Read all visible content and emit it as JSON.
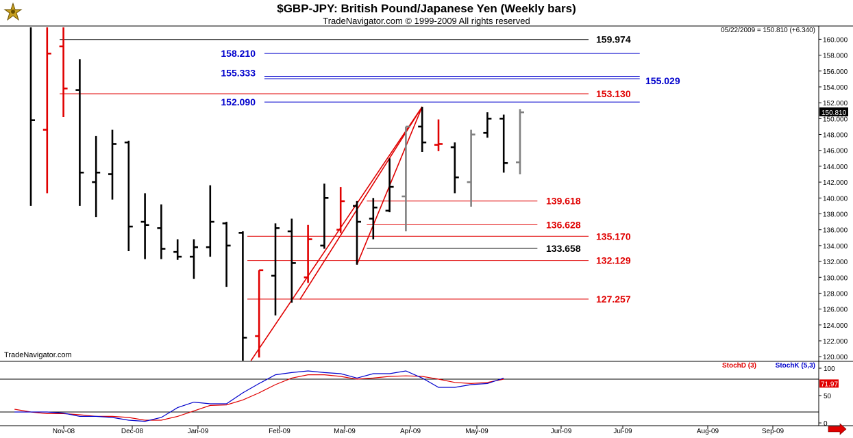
{
  "header": {
    "title": "$GBP-JPY:  British Pound/Japanese Yen  (Weekly bars)",
    "subtitle": "TradeNavigator.com © 1999-2009 All rights reserved",
    "last_info": "05/22/2009 = 150.810 (+6.340)",
    "watermark": "TradeNavigator.com"
  },
  "colors": {
    "red": "#e00000",
    "blue": "#0000cc",
    "black": "#000000",
    "gray": "#808080",
    "green": "#00c000"
  },
  "chart_data": [
    {
      "type": "ohlc",
      "title": "$GBP-JPY:  British Pound/Japanese Yen  (Weekly bars)",
      "ylim": [
        119.5,
        161.5
      ],
      "yticks": [
        120.0,
        122.0,
        124.0,
        126.0,
        128.0,
        130.0,
        132.0,
        134.0,
        136.0,
        138.0,
        140.0,
        142.0,
        144.0,
        146.0,
        148.0,
        150.0,
        152.0,
        154.0,
        156.0,
        158.0,
        160.0
      ],
      "x_months": [
        "Nov-08",
        "Dec-08",
        "Jan-09",
        "Feb-09",
        "Mar-09",
        "Apr-09",
        "May-09",
        "Jun-09",
        "Jul-09",
        "Aug-09",
        "Sep-09"
      ],
      "last_price": "150.810",
      "bars": [
        {
          "open": null,
          "high": 161.5,
          "low": 139.0,
          "close": 149.8,
          "color": "black"
        },
        {
          "open": 148.6,
          "high": 161.5,
          "low": 140.6,
          "close": 158.2,
          "color": "red"
        },
        {
          "open": 159.1,
          "high": 161.5,
          "low": 150.2,
          "close": 153.8,
          "color": "red"
        },
        {
          "open": 153.6,
          "high": 157.5,
          "low": 139.0,
          "close": 143.2,
          "color": "black"
        },
        {
          "open": 142.0,
          "high": 147.8,
          "low": 137.6,
          "close": 143.2,
          "color": "black"
        },
        {
          "open": 143.0,
          "high": 148.6,
          "low": 139.8,
          "close": 146.8,
          "color": "black"
        },
        {
          "open": 147.0,
          "high": 147.2,
          "low": 133.3,
          "close": 136.4,
          "color": "black"
        },
        {
          "open": 137.0,
          "high": 140.6,
          "low": 132.3,
          "close": 136.6,
          "color": "black"
        },
        {
          "open": 136.2,
          "high": 139.2,
          "low": 132.3,
          "close": 133.6,
          "color": "black"
        },
        {
          "open": 133.2,
          "high": 134.8,
          "low": 132.2,
          "close": 132.6,
          "color": "black"
        },
        {
          "open": 132.6,
          "high": 134.8,
          "low": 129.8,
          "close": 133.8,
          "color": "black"
        },
        {
          "open": 133.8,
          "high": 141.6,
          "low": 132.6,
          "close": 137.0,
          "color": "black"
        },
        {
          "open": 136.8,
          "high": 137.0,
          "low": 128.8,
          "close": 134.0,
          "color": "black"
        },
        {
          "open": 135.6,
          "high": 135.8,
          "low": 119.5,
          "close": 122.4,
          "color": "black"
        },
        {
          "open": 122.6,
          "high": 130.9,
          "low": 119.9,
          "close": 130.9,
          "color": "red"
        },
        {
          "open": 130.2,
          "high": 136.8,
          "low": 125.2,
          "close": 136.2,
          "color": "black"
        },
        {
          "open": 135.8,
          "high": 137.4,
          "low": 126.8,
          "close": 131.8,
          "color": "black"
        },
        {
          "open": 130.0,
          "high": 136.6,
          "low": 129.3,
          "close": 134.8,
          "color": "red"
        },
        {
          "open": 134.0,
          "high": 141.8,
          "low": 133.6,
          "close": 140.0,
          "color": "black"
        },
        {
          "open": 136.0,
          "high": 141.4,
          "low": 135.6,
          "close": 139.6,
          "color": "red"
        },
        {
          "open": 139.0,
          "high": 139.6,
          "low": 131.6,
          "close": 137.0,
          "color": "black"
        },
        {
          "open": 137.4,
          "high": 140.0,
          "low": 134.8,
          "close": 138.8,
          "color": "black"
        },
        {
          "open": 138.4,
          "high": 145.0,
          "low": 138.2,
          "close": 141.4,
          "color": "black"
        },
        {
          "open": 140.2,
          "high": 149.0,
          "low": 135.8,
          "close": 149.0,
          "color": "gray"
        },
        {
          "open": 149.0,
          "high": 151.5,
          "low": 145.8,
          "close": 147.0,
          "color": "black"
        },
        {
          "open": 146.7,
          "high": 149.9,
          "low": 145.9,
          "close": 146.8,
          "color": "red"
        },
        {
          "open": 146.4,
          "high": 147.0,
          "low": 140.6,
          "close": 142.6,
          "color": "black"
        },
        {
          "open": 142.0,
          "high": 148.6,
          "low": 138.9,
          "close": 148.0,
          "color": "gray"
        },
        {
          "open": 148.2,
          "high": 150.8,
          "low": 147.6,
          "close": 150.0,
          "color": "black"
        },
        {
          "open": 150.0,
          "high": 150.5,
          "low": 143.2,
          "close": 144.4,
          "color": "black"
        },
        {
          "open": 144.5,
          "high": 151.2,
          "low": 143.0,
          "close": 150.8,
          "color": "gray"
        }
      ],
      "levels": [
        {
          "value": 159.974,
          "label": "159.974",
          "color": "black",
          "x0": 0.07,
          "x1": 0.69
        },
        {
          "value": 158.21,
          "label": "158.210",
          "color": "blue",
          "x0": 0.31,
          "x1": 0.75
        },
        {
          "value": 155.333,
          "label": "155.333",
          "color": "blue",
          "x0": 0.31,
          "x1": 0.75
        },
        {
          "value": 155.029,
          "label": "155.029",
          "color": "blue",
          "x0": 0.31,
          "x1": 0.75
        },
        {
          "value": 153.13,
          "label": "153.130",
          "color": "red",
          "x0": 0.07,
          "x1": 0.69
        },
        {
          "value": 152.09,
          "label": "152.090",
          "color": "blue",
          "x0": 0.31,
          "x1": 0.75
        },
        {
          "value": 139.618,
          "label": "139.618",
          "color": "red",
          "x0": 0.43,
          "x1": 0.63
        },
        {
          "value": 136.628,
          "label": "136.628",
          "color": "red",
          "x0": 0.43,
          "x1": 0.63
        },
        {
          "value": 135.17,
          "label": "135.170",
          "color": "red",
          "x0": 0.29,
          "x1": 0.69
        },
        {
          "value": 133.658,
          "label": "133.658",
          "color": "black",
          "x0": 0.43,
          "x1": 0.63
        },
        {
          "value": 132.129,
          "label": "132.129",
          "color": "red",
          "x0": 0.29,
          "x1": 0.69
        },
        {
          "value": 127.257,
          "label": "127.257",
          "color": "red",
          "x0": 0.29,
          "x1": 0.69
        }
      ],
      "trendlines": [
        [
          [
            13.5,
            119.5
          ],
          [
            24.0,
            151.5
          ]
        ],
        [
          [
            16.5,
            127.2
          ],
          [
            24.0,
            151.5
          ]
        ],
        [
          [
            20.0,
            131.6
          ],
          [
            24.0,
            151.5
          ]
        ]
      ]
    },
    {
      "type": "line",
      "title": "Stochastics",
      "ylim": [
        -5,
        110
      ],
      "yticks": [
        0,
        50,
        100
      ],
      "ref_lines": [
        20,
        80
      ],
      "last_value": "71.97",
      "series": [
        {
          "name": "StochD (3)",
          "color": "red",
          "values": [
            25,
            20,
            17,
            17,
            15,
            12,
            12,
            10,
            5,
            5,
            12,
            22,
            32,
            33,
            42,
            55,
            70,
            82,
            88,
            88,
            85,
            80,
            82,
            85,
            86,
            85,
            80,
            74,
            72,
            74,
            80
          ]
        },
        {
          "name": "StochK (5,3)",
          "color": "blue",
          "values": [
            20,
            20,
            20,
            18,
            12,
            12,
            10,
            5,
            3,
            10,
            28,
            38,
            35,
            35,
            55,
            72,
            88,
            92,
            95,
            92,
            90,
            82,
            90,
            90,
            95,
            82,
            65,
            65,
            70,
            72,
            82
          ]
        }
      ]
    }
  ]
}
